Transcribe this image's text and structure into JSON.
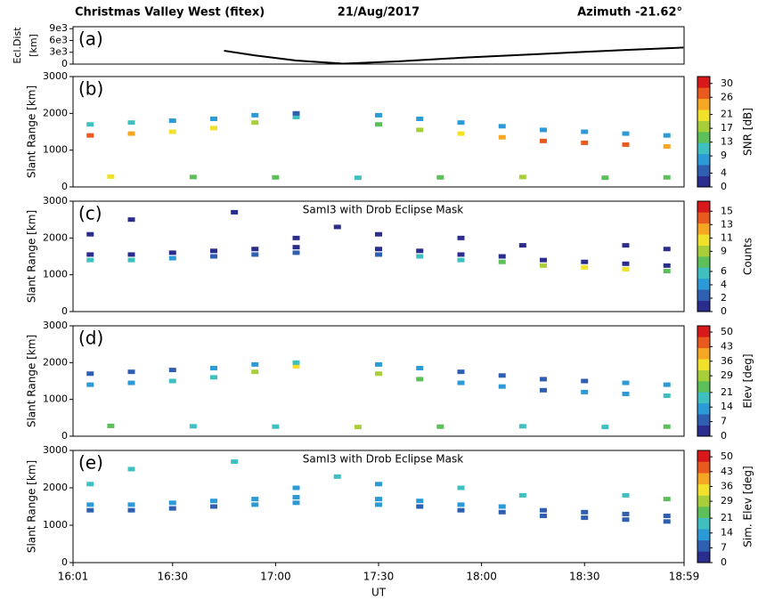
{
  "chart_data": [
    {
      "type": "line",
      "title_left": "Christmas Valley West  (fitex)",
      "title": "21/Aug/2017",
      "title_right": "Azimuth -21.62°",
      "label": "(a)",
      "ylabel": "Ecl.Dist",
      "ylabel2": "[km]",
      "xlim": [
        16.0167,
        18.9833
      ],
      "ylim": [
        0,
        9500
      ],
      "yticks": [
        0,
        {
          "value": 3000,
          "label": "3e3"
        },
        {
          "value": 6000,
          "label": "6e3"
        },
        {
          "value": 9000,
          "label": "9e3"
        }
      ],
      "color": "#000000",
      "x": [
        16.75,
        16.9,
        17.1,
        17.33,
        17.6,
        17.9,
        18.3,
        18.7,
        18.98
      ],
      "y": [
        3400,
        2200,
        900,
        100,
        700,
        1600,
        2600,
        3600,
        4200
      ]
    },
    {
      "type": "scatter",
      "label": "(b)",
      "ylabel": "Slant Range [km]",
      "clabel": "SNR [dB]",
      "xlim": [
        16.0167,
        18.9833
      ],
      "ylim": [
        0,
        3000
      ],
      "yticks": [
        0,
        1000,
        2000,
        3000
      ],
      "clim": [
        0,
        32
      ],
      "cticks": [
        0,
        4,
        9,
        13,
        17,
        21,
        26,
        30
      ],
      "colormap": [
        "#2a2d8c",
        "#2f5fb0",
        "#2b9ad6",
        "#3fbfbf",
        "#5cbf5a",
        "#a6cf3a",
        "#f2e12b",
        "#f5a623",
        "#e85a1e",
        "#d7191c"
      ],
      "x": [
        16.1,
        16.3,
        16.5,
        16.7,
        16.9,
        17.1,
        17.5,
        17.7,
        17.9,
        18.1,
        18.3,
        18.5,
        18.7,
        18.9,
        16.1,
        16.3,
        16.5,
        16.7,
        16.9,
        17.1,
        17.5,
        17.7,
        17.9,
        18.1,
        18.3,
        18.5,
        18.7,
        18.9,
        16.2,
        16.6,
        17.0,
        17.4,
        17.8,
        18.2,
        18.6,
        18.9
      ],
      "y": [
        1400,
        1450,
        1500,
        1600,
        1750,
        1900,
        1700,
        1550,
        1450,
        1350,
        1250,
        1200,
        1150,
        1100,
        1700,
        1750,
        1800,
        1850,
        1950,
        2000,
        1950,
        1850,
        1750,
        1650,
        1550,
        1500,
        1450,
        1400,
        280,
        270,
        260,
        250,
        260,
        270,
        250,
        260
      ],
      "c": [
        26,
        24,
        22,
        20,
        16,
        12,
        14,
        18,
        22,
        24,
        26,
        28,
        26,
        24,
        12,
        10,
        9,
        9,
        8,
        6,
        7,
        8,
        9,
        9,
        8,
        8,
        7,
        8,
        20,
        14,
        13,
        12,
        14,
        16,
        13,
        15
      ]
    },
    {
      "type": "scatter",
      "label": "(c)",
      "ylabel": "Slant Range [km]",
      "clabel": "Counts",
      "annotation": "SamI3 with Drob Eclipse Mask",
      "xlim": [
        16.0167,
        18.9833
      ],
      "ylim": [
        0,
        3000
      ],
      "yticks": [
        0,
        1000,
        2000,
        3000
      ],
      "clim": [
        0,
        16.5
      ],
      "cticks": [
        0,
        2,
        4,
        6,
        9,
        11,
        13,
        15
      ],
      "colormap": [
        "#2a2d8c",
        "#2f5fb0",
        "#2b9ad6",
        "#3fbfbf",
        "#5cbf5a",
        "#a6cf3a",
        "#f2e12b",
        "#f5a623",
        "#e85a1e",
        "#d7191c"
      ],
      "x": [
        16.1,
        16.3,
        16.5,
        16.7,
        16.9,
        17.1,
        17.5,
        17.7,
        17.9,
        18.1,
        18.3,
        18.5,
        18.7,
        18.9,
        16.1,
        16.3,
        16.5,
        16.7,
        16.9,
        17.1,
        17.5,
        17.7,
        17.9,
        18.1,
        18.3,
        18.5,
        18.7,
        18.9,
        16.1,
        16.3,
        16.8,
        17.1,
        17.3,
        17.5,
        17.9,
        18.2,
        18.7,
        18.9
      ],
      "y": [
        1550,
        1550,
        1600,
        1650,
        1700,
        1750,
        1700,
        1650,
        1550,
        1500,
        1400,
        1350,
        1300,
        1250,
        1400,
        1400,
        1450,
        1500,
        1550,
        1600,
        1550,
        1500,
        1400,
        1350,
        1250,
        1200,
        1150,
        1100,
        2100,
        2500,
        2700,
        2000,
        2300,
        2100,
        2000,
        1800,
        1800,
        1700
      ],
      "c": [
        1,
        1,
        1,
        1,
        1,
        1,
        1,
        1,
        1,
        1,
        1,
        1,
        1,
        1,
        6,
        5,
        4,
        3,
        2,
        2,
        3,
        5,
        6,
        7,
        9,
        11,
        10,
        8,
        1,
        1,
        1,
        1,
        1,
        1,
        1,
        1,
        1,
        1
      ]
    },
    {
      "type": "scatter",
      "label": "(d)",
      "ylabel": "Slant Range [km]",
      "clabel": "Elev [deg]",
      "xlim": [
        16.0167,
        18.9833
      ],
      "ylim": [
        0,
        3000
      ],
      "yticks": [
        0,
        1000,
        2000,
        3000
      ],
      "clim": [
        0,
        53
      ],
      "cticks": [
        0,
        7,
        14,
        21,
        29,
        36,
        43,
        50
      ],
      "colormap": [
        "#2a2d8c",
        "#2f5fb0",
        "#2b9ad6",
        "#3fbfbf",
        "#5cbf5a",
        "#a6cf3a",
        "#f2e12b",
        "#f5a623",
        "#e85a1e",
        "#d7191c"
      ],
      "x": [
        16.1,
        16.3,
        16.5,
        16.7,
        16.9,
        17.1,
        17.5,
        17.7,
        17.9,
        18.1,
        18.3,
        18.5,
        18.7,
        18.9,
        16.1,
        16.3,
        16.5,
        16.7,
        16.9,
        17.1,
        17.5,
        17.7,
        17.9,
        18.1,
        18.3,
        18.5,
        18.7,
        18.9,
        16.2,
        16.6,
        17.0,
        17.4,
        17.8,
        18.2,
        18.6,
        18.9
      ],
      "y": [
        1400,
        1450,
        1500,
        1600,
        1750,
        1900,
        1700,
        1550,
        1450,
        1350,
        1250,
        1200,
        1150,
        1100,
        1700,
        1750,
        1800,
        1850,
        1950,
        2000,
        1950,
        1850,
        1750,
        1650,
        1550,
        1500,
        1450,
        1400,
        280,
        270,
        260,
        250,
        260,
        270,
        250,
        260
      ],
      "c": [
        14,
        12,
        18,
        21,
        28,
        36,
        30,
        22,
        14,
        12,
        10,
        12,
        14,
        16,
        7,
        9,
        10,
        12,
        14,
        18,
        14,
        12,
        10,
        10,
        9,
        10,
        12,
        14,
        25,
        21,
        21,
        29,
        22,
        21,
        21,
        22
      ]
    },
    {
      "type": "scatter",
      "label": "(e)",
      "ylabel": "Slant Range [km]",
      "clabel": "Sim. Elev [deg]",
      "annotation": "SamI3 with Drob Eclipse Mask",
      "xlabel": "UT",
      "xlim": [
        16.0167,
        18.9833
      ],
      "ylim": [
        0,
        3000
      ],
      "yticks": [
        0,
        1000,
        2000,
        3000
      ],
      "xticks": [
        {
          "value": 16.0167,
          "label": "16:01"
        },
        {
          "value": 16.5,
          "label": "16:30"
        },
        {
          "value": 17,
          "label": "17:00"
        },
        {
          "value": 17.5,
          "label": "17:30"
        },
        {
          "value": 18,
          "label": "18:00"
        },
        {
          "value": 18.5,
          "label": "18:30"
        },
        {
          "value": 18.9833,
          "label": "18:59"
        }
      ],
      "clim": [
        0,
        53
      ],
      "cticks": [
        0,
        7,
        14,
        21,
        29,
        36,
        43,
        50
      ],
      "colormap": [
        "#2a2d8c",
        "#2f5fb0",
        "#2b9ad6",
        "#3fbfbf",
        "#5cbf5a",
        "#a6cf3a",
        "#f2e12b",
        "#f5a623",
        "#e85a1e",
        "#d7191c"
      ],
      "x": [
        16.1,
        16.3,
        16.5,
        16.7,
        16.9,
        17.1,
        17.5,
        17.7,
        17.9,
        18.1,
        18.3,
        18.5,
        18.7,
        18.9,
        16.1,
        16.3,
        16.5,
        16.7,
        16.9,
        17.1,
        17.5,
        17.7,
        17.9,
        18.1,
        18.3,
        18.5,
        18.7,
        18.9,
        16.1,
        16.3,
        16.8,
        17.1,
        17.3,
        17.5,
        17.9,
        18.2,
        18.7,
        18.9
      ],
      "y": [
        1550,
        1550,
        1600,
        1650,
        1700,
        1750,
        1700,
        1650,
        1550,
        1500,
        1400,
        1350,
        1300,
        1250,
        1400,
        1400,
        1450,
        1500,
        1550,
        1600,
        1550,
        1500,
        1400,
        1350,
        1250,
        1200,
        1150,
        1100,
        2100,
        2500,
        2700,
        2000,
        2300,
        2100,
        2000,
        1800,
        1800,
        1700
      ],
      "c": [
        11,
        11,
        12,
        12,
        13,
        13,
        12,
        12,
        11,
        11,
        10,
        10,
        10,
        10,
        10,
        10,
        10,
        10,
        11,
        11,
        11,
        10,
        10,
        10,
        10,
        10,
        10,
        10,
        20,
        18,
        16,
        14,
        18,
        14,
        17,
        18,
        20,
        22
      ]
    }
  ]
}
